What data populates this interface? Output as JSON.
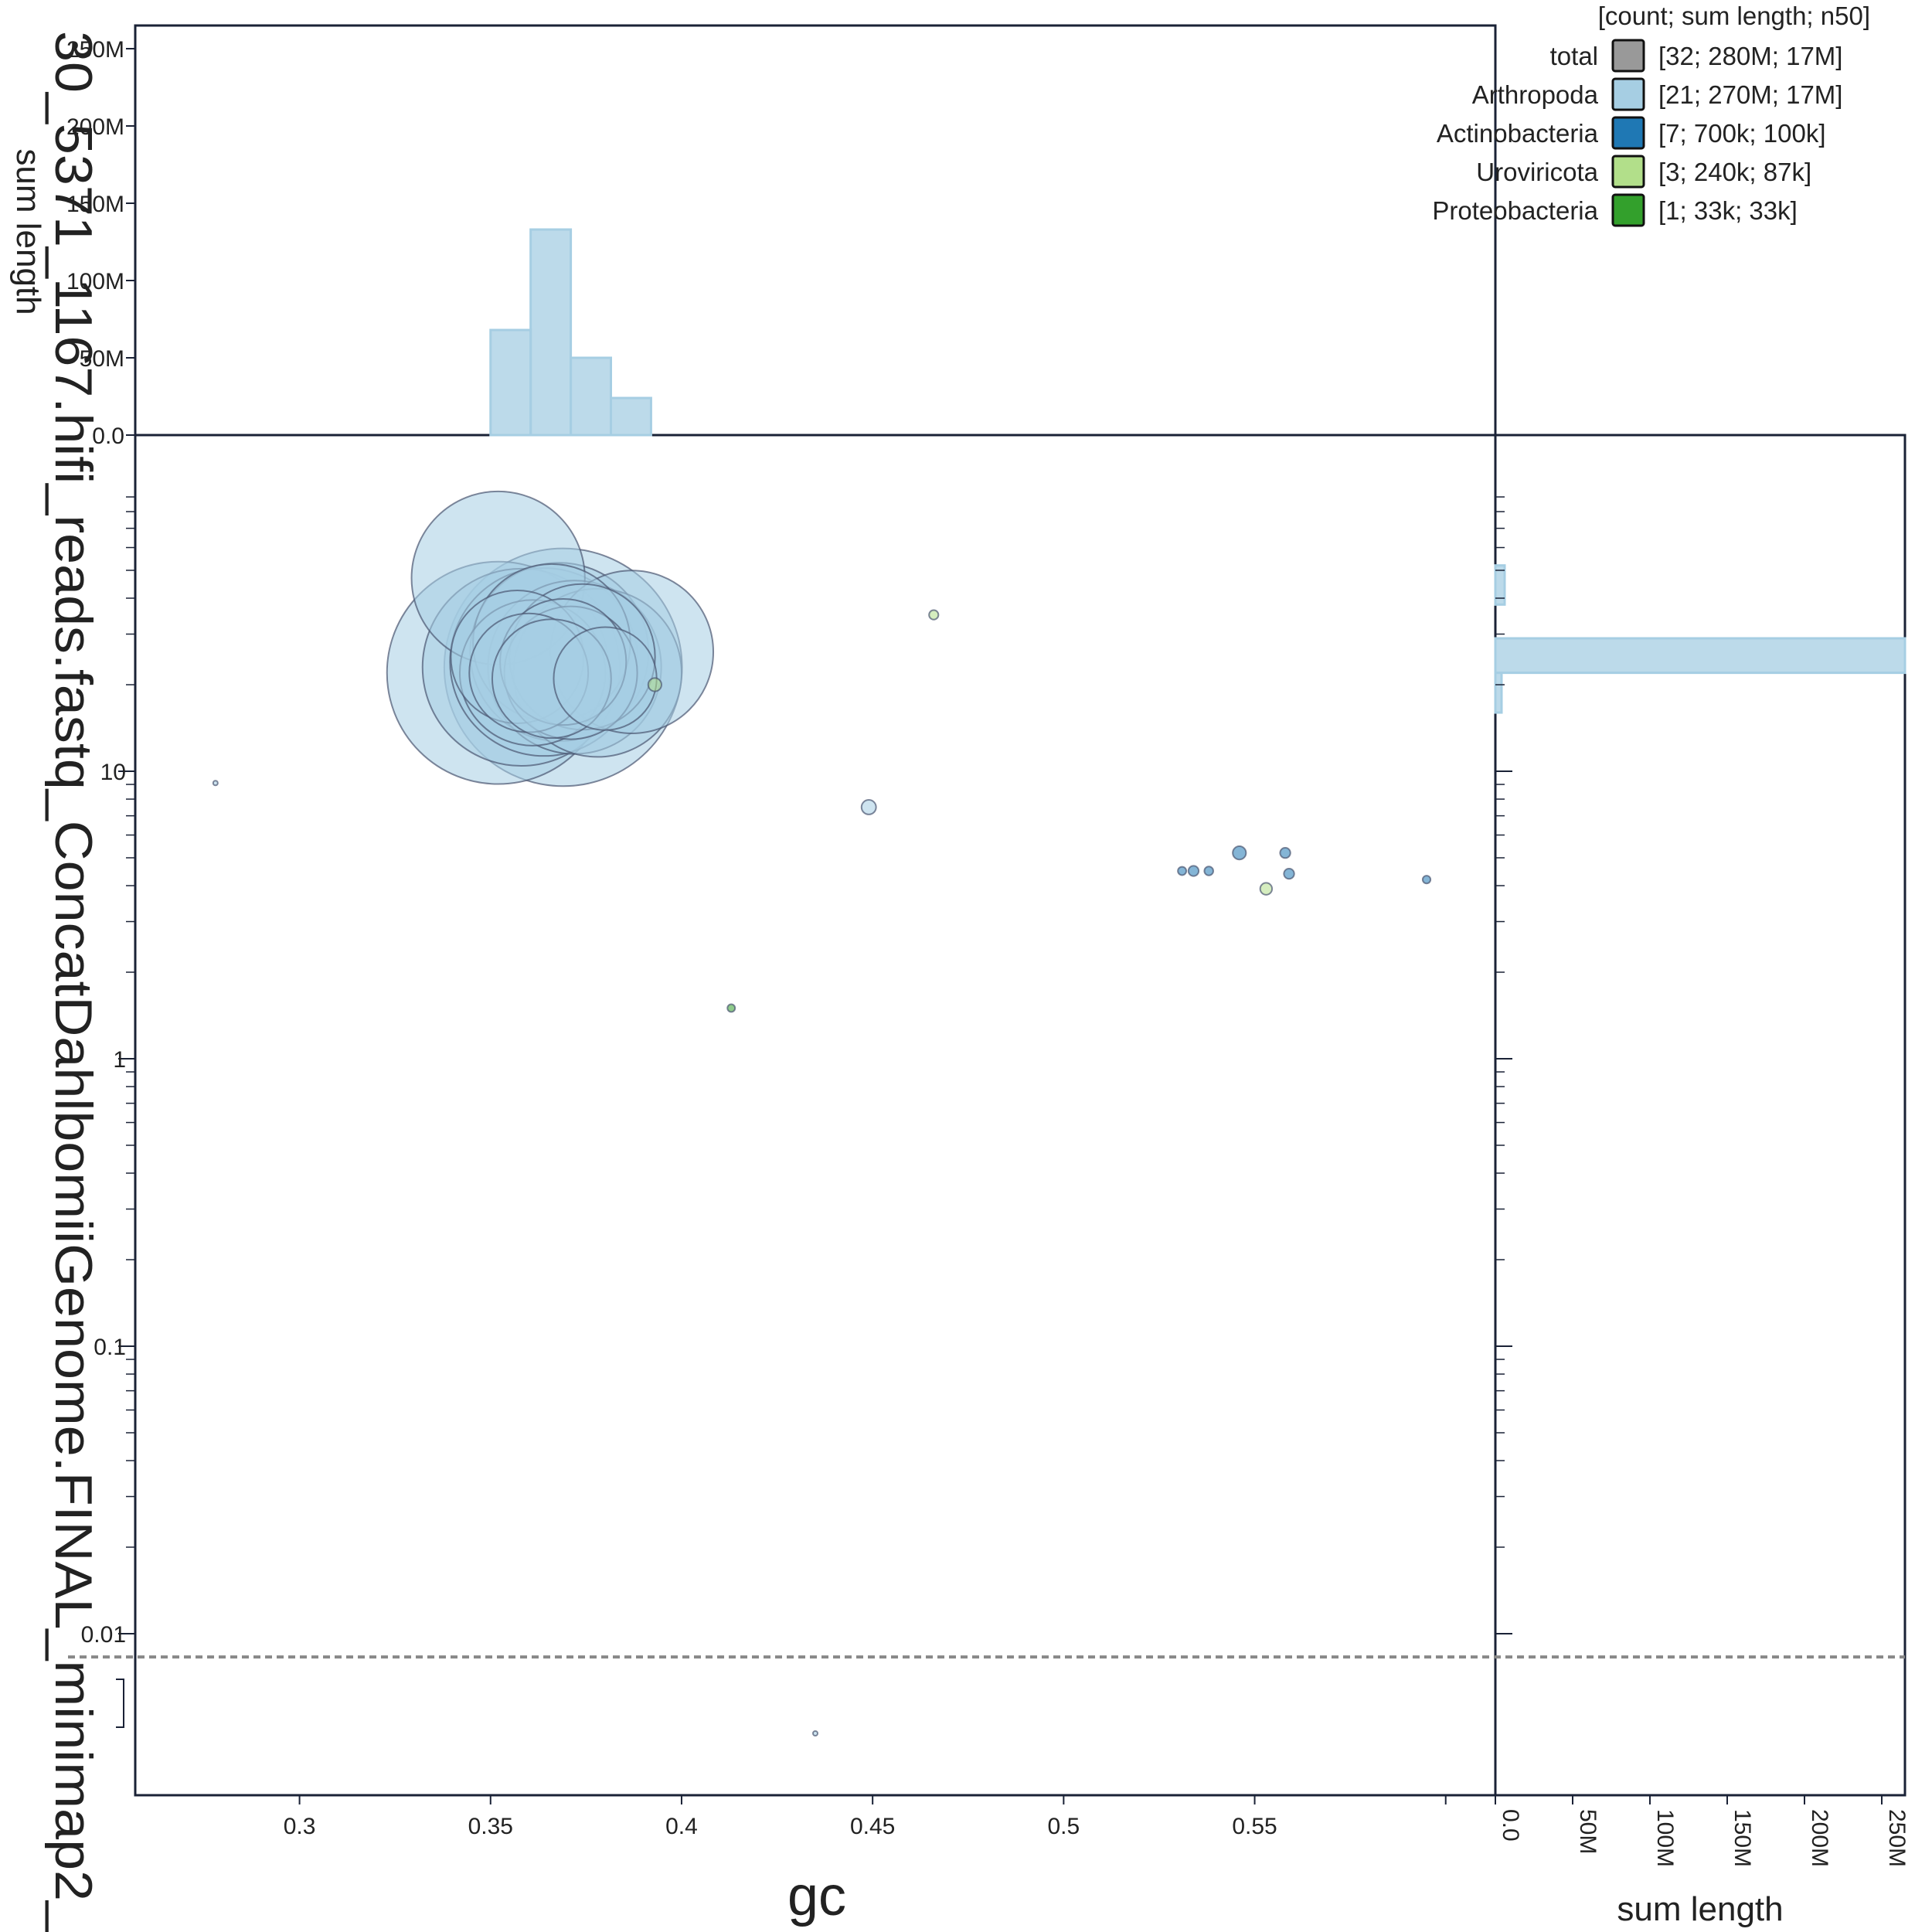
{
  "chart_data": {
    "type": "scatter",
    "title": "",
    "xlabel": "gc",
    "ylabel": "30_5371_1167.hifi_reads.fastq_ConcatDahlbomiiGenome.FINAL_minimap2_",
    "top_hist_ylabel": "sum length",
    "right_hist_xlabel": "sum length",
    "x_scale": "linear",
    "y_scale": "log",
    "xlim": [
      0.257,
      0.613
    ],
    "ylim_decades": [
      -2.5,
      0.77
    ],
    "x_ticks": [
      "0.3",
      "0.35",
      "0.4",
      "0.45",
      "0.5",
      "0.55"
    ],
    "y_ticks": [
      "10",
      "1",
      "0.1",
      "0.01"
    ],
    "top_hist_ticks": [
      "0.0",
      "50M",
      "100M",
      "150M",
      "200M",
      "250M"
    ],
    "right_hist_ticks": [
      "0.0",
      "50M",
      "100M",
      "150M",
      "200M",
      "250M"
    ],
    "zero_threshold_line": 0.0083,
    "legend": {
      "header": "[count; sum length; n50]",
      "placement": "top-right",
      "entries": [
        {
          "name": "total",
          "stats": "[32; 280M; 17M]",
          "color": "#999999"
        },
        {
          "name": "Arthropoda",
          "stats": "[21; 270M; 17M]",
          "color": "#a6cee3"
        },
        {
          "name": "Actinobacteria",
          "stats": "[7; 700k; 100k]",
          "color": "#1f78b4"
        },
        {
          "name": "Uroviricota",
          "stats": "[3; 240k; 87k]",
          "color": "#b2df8a"
        },
        {
          "name": "Proteobacteria",
          "stats": "[1; 33k; 33k]",
          "color": "#33a02c"
        }
      ]
    },
    "series": [
      {
        "name": "Arthropoda",
        "color": "#a6cee3",
        "points": [
          {
            "x": 0.352,
            "y": 47,
            "size": 17000000
          },
          {
            "x": 0.352,
            "y": 22,
            "size": 28000000
          },
          {
            "x": 0.369,
            "y": 23,
            "size": 32000000
          },
          {
            "x": 0.358,
            "y": 23,
            "size": 22000000
          },
          {
            "x": 0.364,
            "y": 24,
            "size": 20000000
          },
          {
            "x": 0.368,
            "y": 26,
            "size": 18000000
          },
          {
            "x": 0.372,
            "y": 23,
            "size": 17000000
          },
          {
            "x": 0.366,
            "y": 28,
            "size": 14000000
          },
          {
            "x": 0.361,
            "y": 22,
            "size": 12000000
          },
          {
            "x": 0.378,
            "y": 22,
            "size": 16000000
          },
          {
            "x": 0.387,
            "y": 26,
            "size": 15000000
          },
          {
            "x": 0.374,
            "y": 25,
            "size": 12000000
          },
          {
            "x": 0.357,
            "y": 25,
            "size": 10000000
          },
          {
            "x": 0.371,
            "y": 22,
            "size": 10000000
          },
          {
            "x": 0.36,
            "y": 22,
            "size": 8000000
          },
          {
            "x": 0.38,
            "y": 21,
            "size": 6000000
          },
          {
            "x": 0.366,
            "y": 21,
            "size": 8000000
          },
          {
            "x": 0.449,
            "y": 7.5,
            "size": 120000
          },
          {
            "x": 0.278,
            "y": 9.1,
            "size": 12000
          },
          {
            "x": 0.435,
            "y": 0.0045,
            "size": 12000
          },
          {
            "x": 0.369,
            "y": 24,
            "size": 9000000
          }
        ]
      },
      {
        "name": "Actinobacteria",
        "color": "#1f78b4",
        "points": [
          {
            "x": 0.546,
            "y": 5.2,
            "size": 100000
          },
          {
            "x": 0.558,
            "y": 5.2,
            "size": 60000
          },
          {
            "x": 0.559,
            "y": 4.4,
            "size": 60000
          },
          {
            "x": 0.534,
            "y": 4.5,
            "size": 60000
          },
          {
            "x": 0.538,
            "y": 4.5,
            "size": 45000
          },
          {
            "x": 0.531,
            "y": 4.5,
            "size": 40000
          },
          {
            "x": 0.595,
            "y": 4.2,
            "size": 35000
          }
        ]
      },
      {
        "name": "Uroviricota",
        "color": "#b2df8a",
        "points": [
          {
            "x": 0.393,
            "y": 20,
            "size": 100000
          },
          {
            "x": 0.553,
            "y": 3.9,
            "size": 80000
          },
          {
            "x": 0.466,
            "y": 35,
            "size": 50000
          }
        ]
      },
      {
        "name": "Proteobacteria",
        "color": "#33a02c",
        "points": [
          {
            "x": 0.413,
            "y": 1.5,
            "size": 33000
          }
        ]
      }
    ],
    "top_histogram": {
      "series": "Arthropoda",
      "bins": [
        {
          "x0": 0.35,
          "x1": 0.3605,
          "value": 68000000
        },
        {
          "x0": 0.3605,
          "x1": 0.371,
          "value": 133000000
        },
        {
          "x0": 0.371,
          "x1": 0.3815,
          "value": 50000000
        },
        {
          "x0": 0.3815,
          "x1": 0.392,
          "value": 24000000
        }
      ]
    },
    "right_histogram": {
      "series": "Arthropoda",
      "bins": [
        {
          "y0": 38,
          "y1": 52,
          "value": 6000000
        },
        {
          "y0": 22,
          "y1": 29,
          "value": 265000000
        },
        {
          "y0": 16,
          "y1": 22,
          "value": 4000000
        }
      ]
    }
  }
}
